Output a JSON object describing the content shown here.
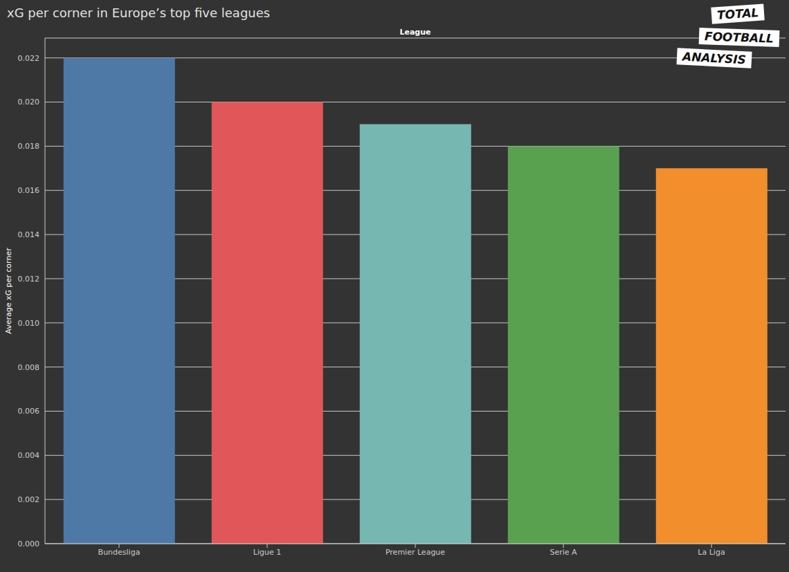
{
  "chart_data": {
    "type": "bar",
    "title": "xG per corner in Europe’s top five leagues",
    "x_label": "League",
    "y_label": "Average xG per corner",
    "logo": [
      "TOTAL",
      "FOOTBALL",
      "ANALYSIS"
    ],
    "categories": [
      "Bundesliga",
      "Ligue 1",
      "Premier League",
      "Serie A",
      "La Liga"
    ],
    "values": [
      0.022,
      0.02,
      0.019,
      0.018,
      0.017
    ],
    "colors": [
      "#4e79a7",
      "#e15759",
      "#76b7b2",
      "#59a14f",
      "#f28e2b"
    ],
    "ylim": [
      0,
      0.0229
    ],
    "yticks": [
      {
        "value": 0,
        "label": "0.000"
      },
      {
        "value": 0.002,
        "label": "0.002"
      },
      {
        "value": 0.004,
        "label": "0.004"
      },
      {
        "value": 0.006,
        "label": "0.006"
      },
      {
        "value": 0.008,
        "label": "0.008"
      },
      {
        "value": 0.01,
        "label": "0.010"
      },
      {
        "value": 0.012,
        "label": "0.012"
      },
      {
        "value": 0.014,
        "label": "0.014"
      },
      {
        "value": 0.016,
        "label": "0.016"
      },
      {
        "value": 0.018,
        "label": "0.018"
      },
      {
        "value": 0.02,
        "label": "0.020"
      },
      {
        "value": 0.022,
        "label": "0.022"
      }
    ],
    "grid": true
  }
}
